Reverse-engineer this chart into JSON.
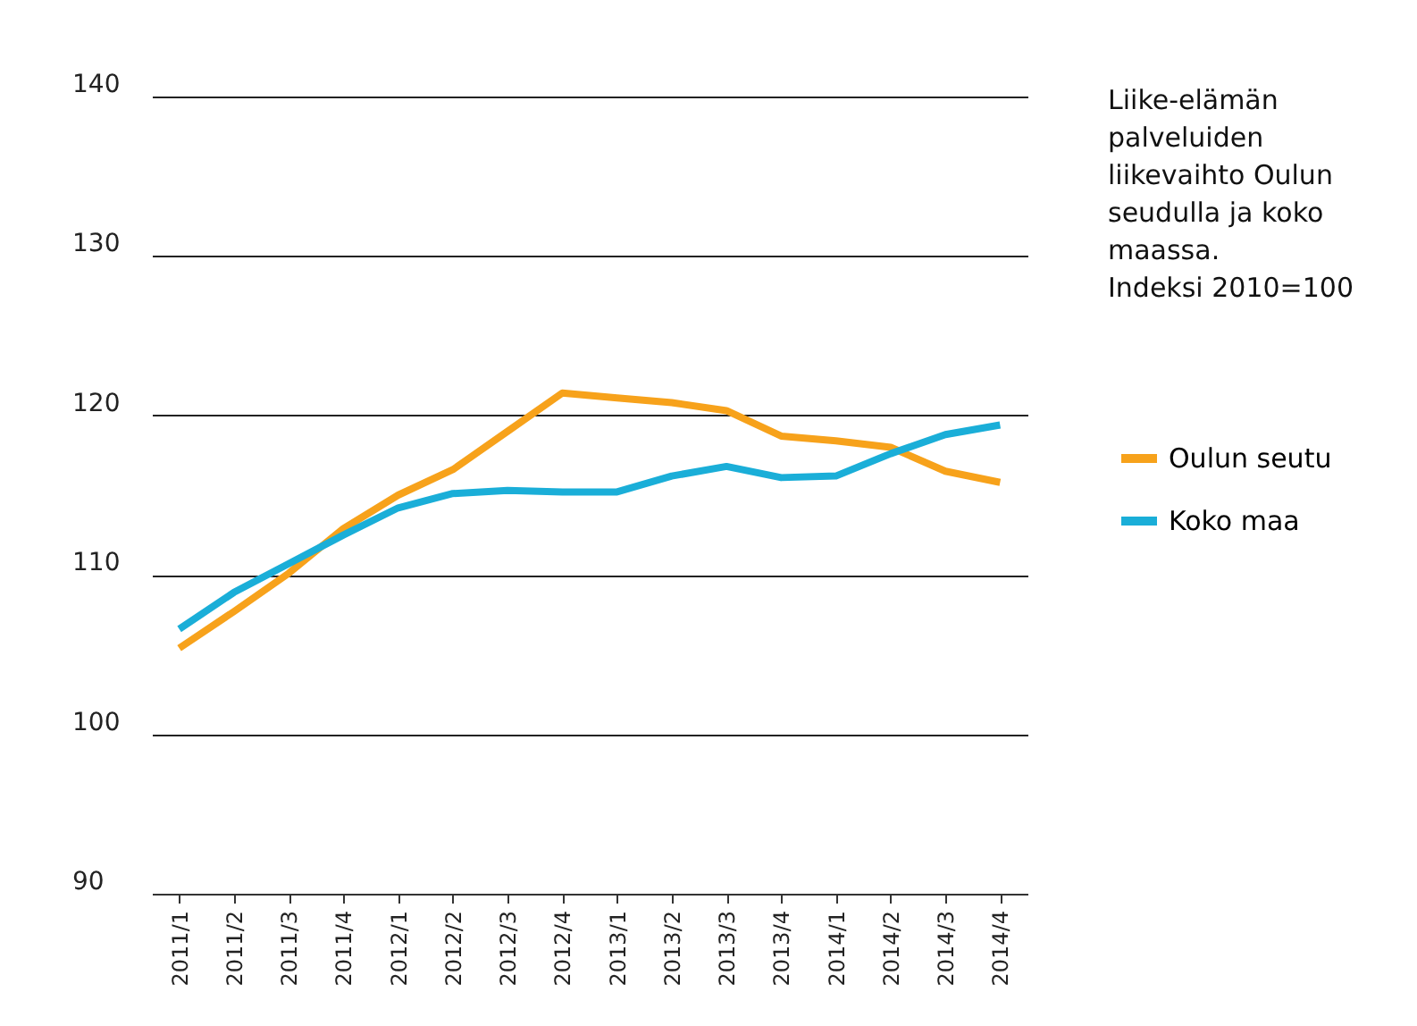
{
  "chart_data": {
    "type": "line",
    "title": "Liike-elämän\npalveluiden\nliikevaihto Oulun\nseudulla ja koko\nmaassa.\nIndeksi 2010=100",
    "categories": [
      "2011/1",
      "2011/2",
      "2011/3",
      "2011/4",
      "2012/1",
      "2012/2",
      "2012/3",
      "2012/4",
      "2013/1",
      "2013/2",
      "2013/3",
      "2013/4",
      "2014/1",
      "2014/2",
      "2014/3",
      "2014/4"
    ],
    "series": [
      {
        "name": "Oulun seutu",
        "color": "#f7a21b",
        "values": [
          105.4,
          107.7,
          110.1,
          112.9,
          115.0,
          116.6,
          119.0,
          121.4,
          121.1,
          120.8,
          120.3,
          118.7,
          118.4,
          118.0,
          116.5,
          115.8
        ]
      },
      {
        "name": "Koko maa",
        "color": "#1aaed8",
        "values": [
          106.6,
          108.9,
          110.7,
          112.5,
          114.2,
          115.1,
          115.3,
          115.2,
          115.2,
          116.2,
          116.8,
          116.1,
          116.2,
          117.6,
          118.8,
          119.4
        ]
      }
    ],
    "ylim": [
      90,
      140
    ],
    "yticks": [
      90,
      100,
      110,
      120,
      130,
      140
    ],
    "grid": "y",
    "legend": "right",
    "line_style": "solid",
    "marker": "none"
  }
}
